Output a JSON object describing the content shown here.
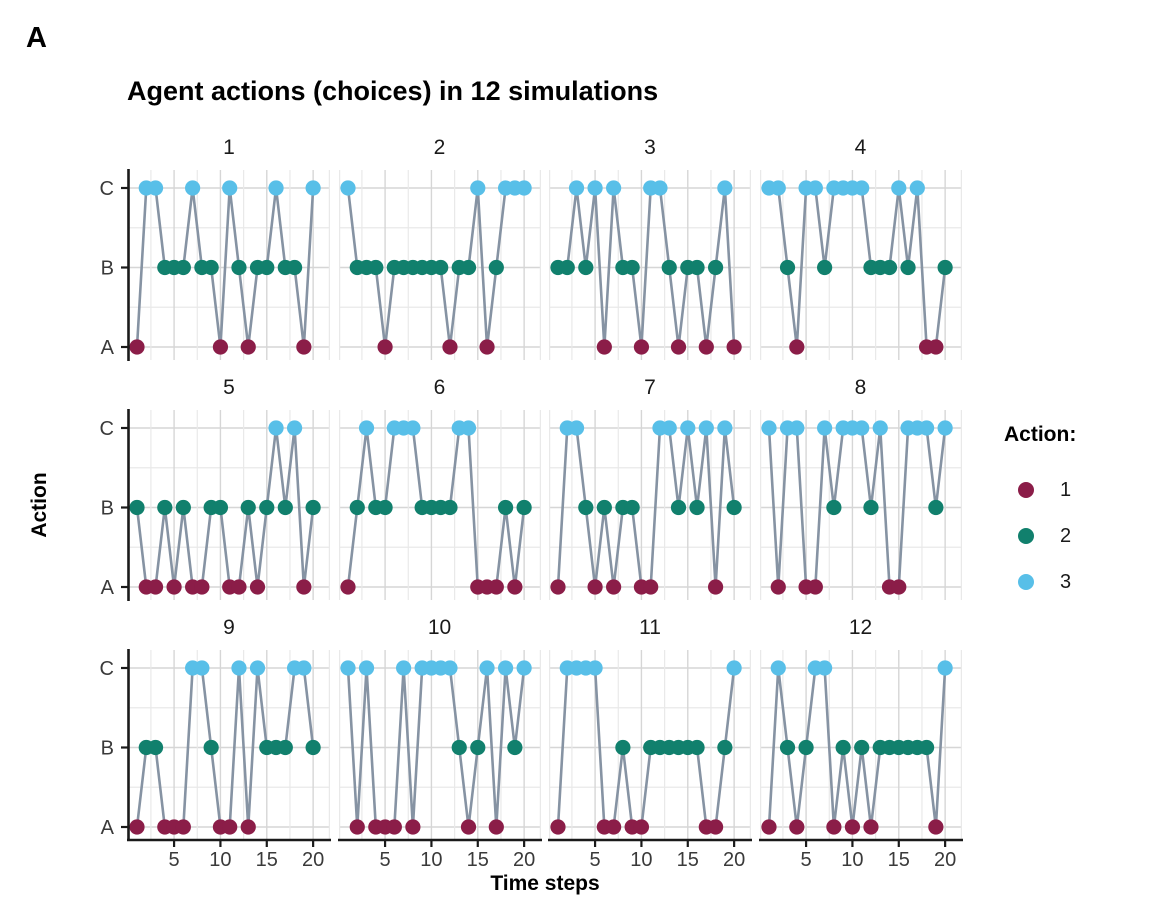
{
  "figure": {
    "panel_label": "A"
  },
  "chart": {
    "title": "Agent actions (choices) in 12 simulations",
    "x_label": "Time steps",
    "y_label": "Action",
    "legend": {
      "title": "Action:",
      "position": "right",
      "items": [
        {
          "label": "1",
          "color": "#8B1D48"
        },
        {
          "label": "2",
          "color": "#11806D"
        },
        {
          "label": "3",
          "color": "#58BFE8"
        }
      ]
    }
  },
  "chart_data": {
    "type": "line",
    "facet_grid": {
      "rows": 3,
      "cols": 4
    },
    "x_range": [
      1,
      20
    ],
    "x_ticks": [
      5,
      10,
      15,
      20
    ],
    "y_categories": [
      "A",
      "B",
      "C"
    ],
    "y_tick_labels_top_to_bottom": [
      "C",
      "B",
      "A"
    ],
    "action_to_level": {
      "1": "A",
      "2": "B",
      "3": "C"
    },
    "colors": {
      "1": "#8B1D48",
      "2": "#11806D",
      "3": "#58BFE8"
    },
    "line_color": "#8693A3",
    "grid": true,
    "facets": [
      {
        "label": "1",
        "actions": [
          1,
          3,
          3,
          2,
          2,
          2,
          3,
          2,
          2,
          1,
          3,
          2,
          1,
          2,
          2,
          3,
          2,
          2,
          1,
          3
        ]
      },
      {
        "label": "2",
        "actions": [
          3,
          2,
          2,
          2,
          1,
          2,
          2,
          2,
          2,
          2,
          2,
          1,
          2,
          2,
          3,
          1,
          2,
          3,
          3,
          3
        ]
      },
      {
        "label": "3",
        "actions": [
          2,
          2,
          3,
          2,
          3,
          1,
          3,
          2,
          2,
          1,
          3,
          3,
          2,
          1,
          2,
          2,
          1,
          2,
          3,
          1
        ]
      },
      {
        "label": "4",
        "actions": [
          3,
          3,
          2,
          1,
          3,
          3,
          2,
          3,
          3,
          3,
          3,
          2,
          2,
          2,
          3,
          2,
          3,
          1,
          1,
          2
        ]
      },
      {
        "label": "5",
        "actions": [
          2,
          1,
          1,
          2,
          1,
          2,
          1,
          1,
          2,
          2,
          1,
          1,
          2,
          1,
          2,
          3,
          2,
          3,
          1,
          2
        ]
      },
      {
        "label": "6",
        "actions": [
          1,
          2,
          3,
          2,
          2,
          3,
          3,
          3,
          2,
          2,
          2,
          2,
          3,
          3,
          1,
          1,
          1,
          2,
          1,
          2
        ]
      },
      {
        "label": "7",
        "actions": [
          1,
          3,
          3,
          2,
          1,
          2,
          1,
          2,
          2,
          1,
          1,
          3,
          3,
          2,
          3,
          2,
          3,
          1,
          3,
          2
        ]
      },
      {
        "label": "8",
        "actions": [
          3,
          1,
          3,
          3,
          1,
          1,
          3,
          2,
          3,
          3,
          3,
          2,
          3,
          1,
          1,
          3,
          3,
          3,
          2,
          3
        ]
      },
      {
        "label": "9",
        "actions": [
          1,
          2,
          2,
          1,
          1,
          1,
          3,
          3,
          2,
          1,
          1,
          3,
          1,
          3,
          2,
          2,
          2,
          3,
          3,
          2
        ]
      },
      {
        "label": "10",
        "actions": [
          3,
          1,
          3,
          1,
          1,
          1,
          3,
          1,
          3,
          3,
          3,
          3,
          2,
          1,
          2,
          3,
          1,
          3,
          2,
          3
        ]
      },
      {
        "label": "11",
        "actions": [
          1,
          3,
          3,
          3,
          3,
          1,
          1,
          2,
          1,
          1,
          2,
          2,
          2,
          2,
          2,
          2,
          1,
          1,
          2,
          3
        ]
      },
      {
        "label": "12",
        "actions": [
          1,
          3,
          2,
          1,
          2,
          3,
          3,
          1,
          2,
          1,
          2,
          1,
          2,
          2,
          2,
          2,
          2,
          2,
          1,
          3
        ]
      }
    ]
  }
}
